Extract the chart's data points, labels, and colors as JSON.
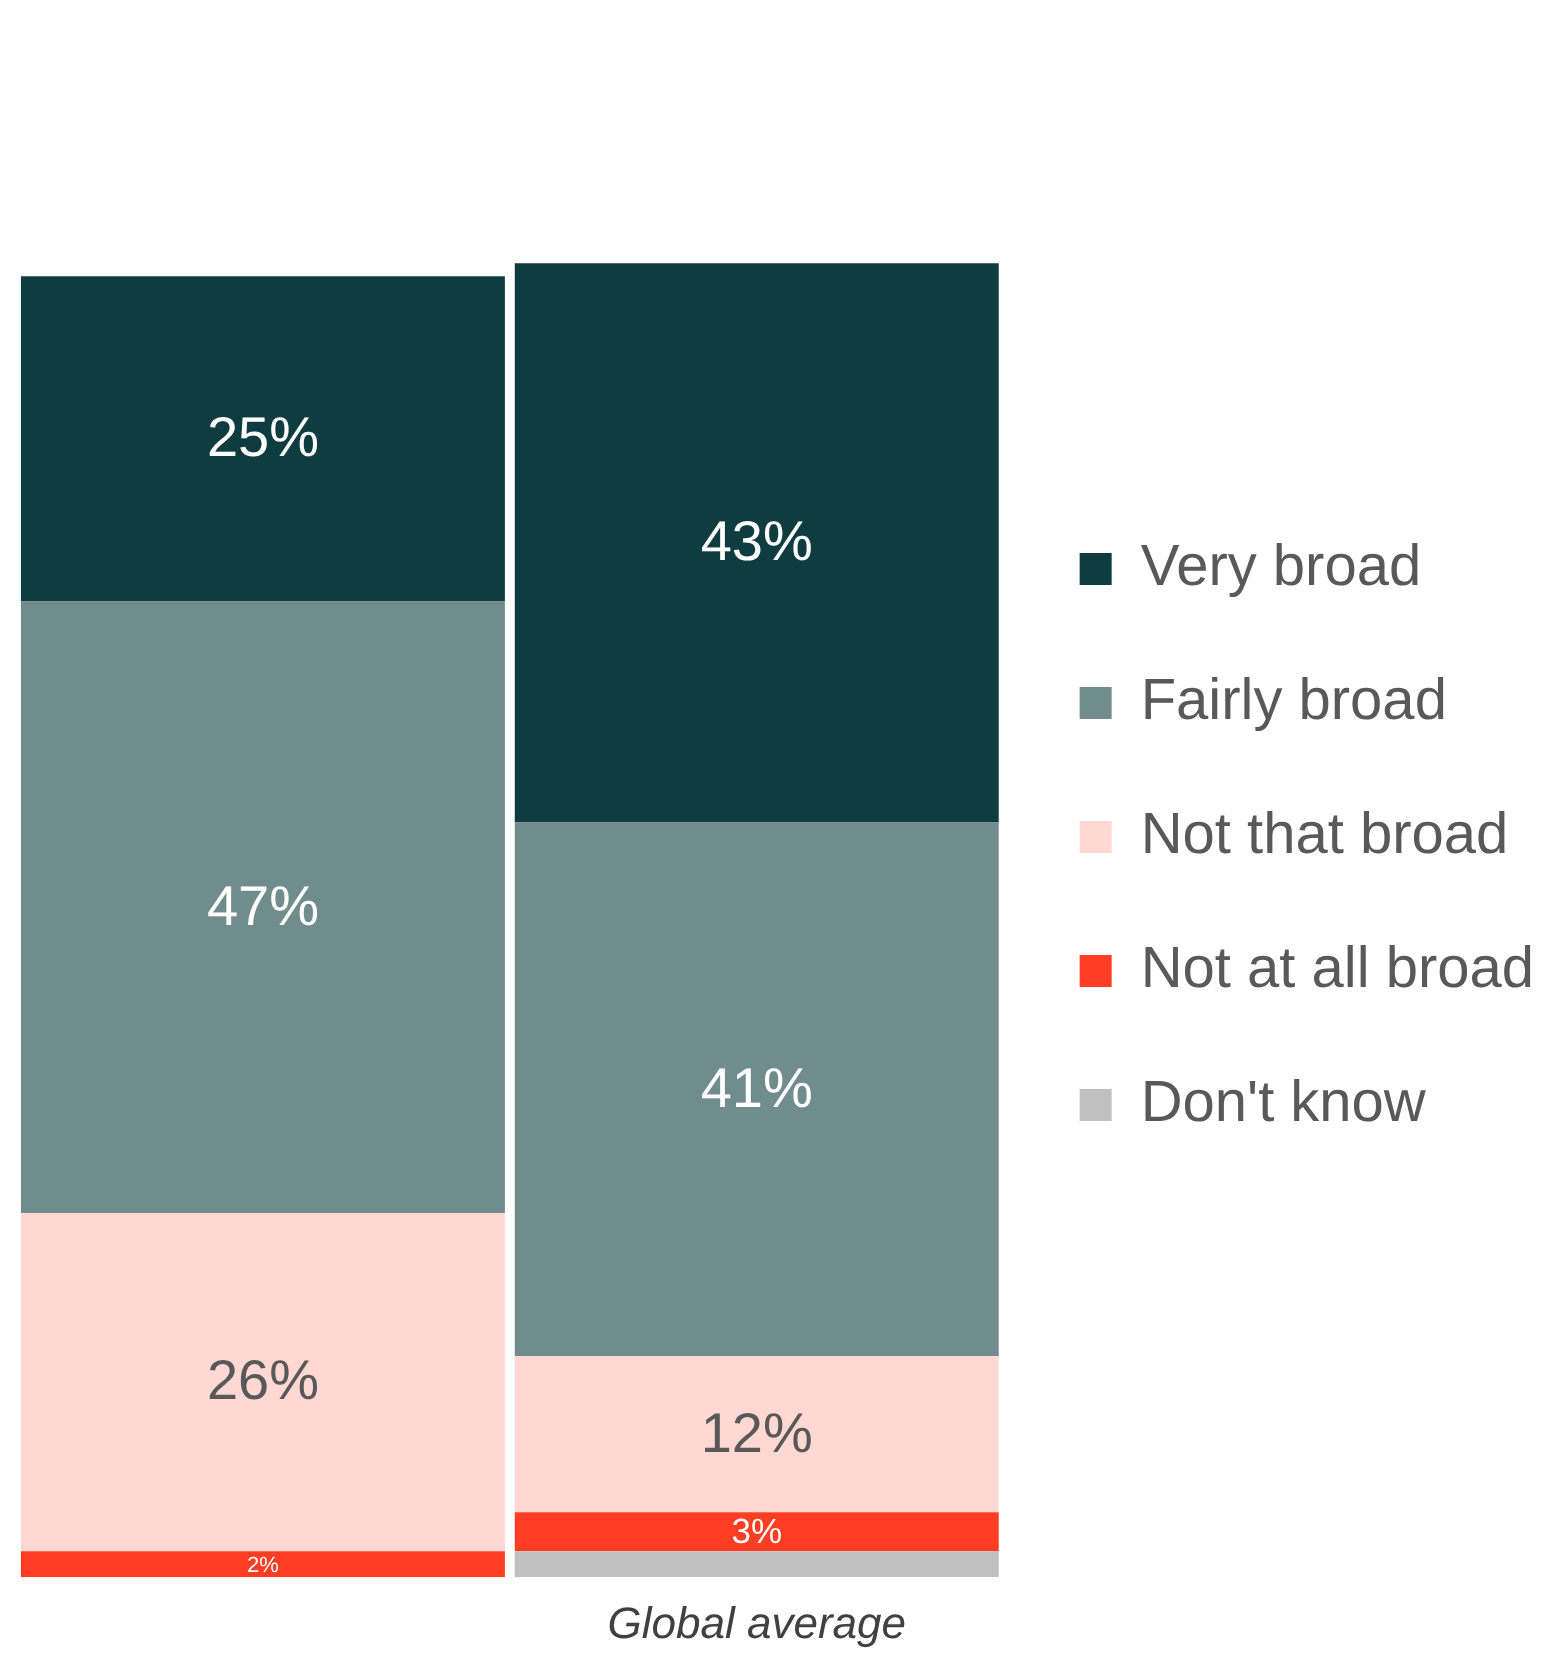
{
  "chart_data": {
    "type": "bar",
    "stacked": true,
    "categories": [
      null,
      "Global average"
    ],
    "series": [
      {
        "name": "Don't know",
        "color": "#c0c0c0",
        "values": [
          null,
          2
        ],
        "value_labels": [
          null,
          null
        ]
      },
      {
        "name": "Not at all broad",
        "color": "#ff3d22",
        "values": [
          2,
          3
        ],
        "value_labels": [
          "2%",
          "3%"
        ]
      },
      {
        "name": "Not that broad",
        "color": "#ffd8d3",
        "values": [
          26,
          12
        ],
        "value_labels": [
          "26%",
          "12%"
        ]
      },
      {
        "name": "Fairly broad",
        "color": "#718c8c",
        "values": [
          47,
          41
        ],
        "value_labels": [
          "47%",
          "41%"
        ]
      },
      {
        "name": "Very broad",
        "color": "#0f3d3f",
        "values": [
          25,
          43
        ],
        "value_labels": [
          "25%",
          "43%"
        ]
      }
    ],
    "legend": "right",
    "tick_labels": "x"
  }
}
